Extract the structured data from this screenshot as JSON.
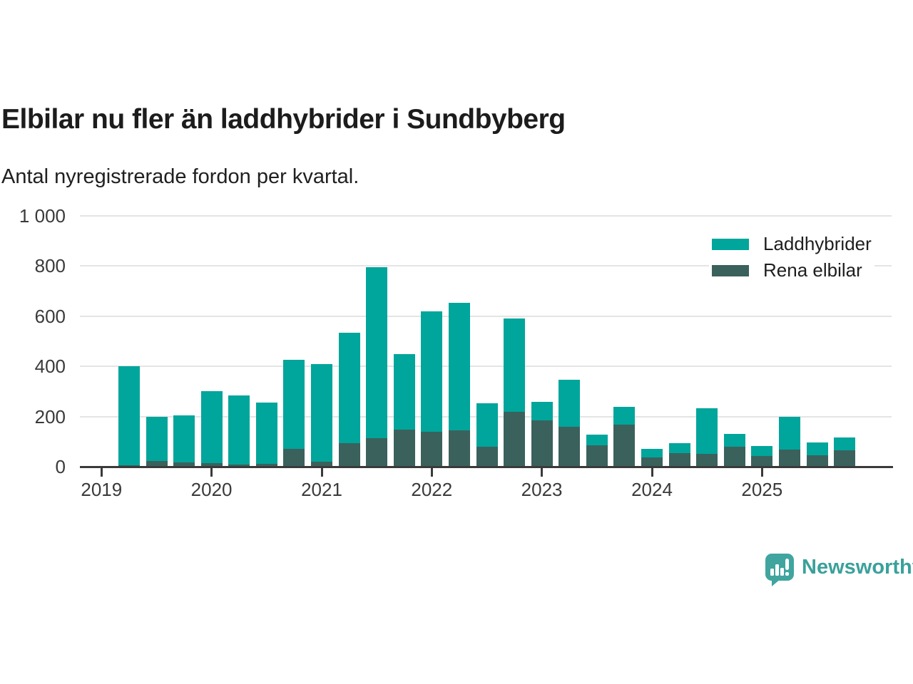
{
  "header": {
    "title": "Elbilar nu fler än laddhybrider i Sundbyberg",
    "subtitle": "Antal nyregistrerade fordon per kvartal."
  },
  "chart_data": {
    "type": "bar",
    "stacked": true,
    "title": "Elbilar nu fler än laddhybrider i Sundbyberg",
    "subtitle": "Antal nyregistrerade fordon per kvartal.",
    "xlabel": "",
    "ylabel": "",
    "ylim": [
      0,
      1000
    ],
    "y_ticks": [
      0,
      200,
      400,
      600,
      800,
      1000
    ],
    "y_tick_labels": [
      "0",
      "200",
      "400",
      "600",
      "800",
      "1 000"
    ],
    "x_year_labels": [
      "2019",
      "2020",
      "2021",
      "2022",
      "2023",
      "2024",
      "2025"
    ],
    "categories": [
      "2019 K2",
      "2019 K3",
      "2019 K4",
      "2020 K1",
      "2020 K2",
      "2020 K3",
      "2020 K4",
      "2021 K1",
      "2021 K2",
      "2021 K3",
      "2021 K4",
      "2022 K1",
      "2022 K2",
      "2022 K3",
      "2022 K4",
      "2023 K1",
      "2023 K2",
      "2023 K3",
      "2023 K4",
      "2024 K1",
      "2024 K2",
      "2024 K3",
      "2024 K4",
      "2025 K1",
      "2025 K2",
      "2025 K3",
      "2025 K4"
    ],
    "series": [
      {
        "name": "Laddhybrider",
        "color": "#00a59b",
        "stack_position": "top",
        "values": [
          395,
          178,
          189,
          285,
          275,
          245,
          355,
          390,
          440,
          680,
          302,
          482,
          510,
          173,
          372,
          73,
          188,
          43,
          71,
          34,
          38,
          180,
          52,
          39,
          132,
          51,
          52
        ]
      },
      {
        "name": "Rena elbilar",
        "color": "#3b615c",
        "stack_position": "bottom",
        "values": [
          5,
          22,
          16,
          15,
          8,
          12,
          70,
          20,
          95,
          115,
          148,
          138,
          145,
          80,
          220,
          185,
          160,
          85,
          168,
          38,
          55,
          52,
          80,
          43,
          68,
          46,
          66
        ]
      }
    ],
    "grid": "horizontal",
    "legend_position": "top-right"
  },
  "legend": {
    "items": [
      {
        "label": "Laddhybrider",
        "color": "#00a59b"
      },
      {
        "label": "Rena elbilar",
        "color": "#3b615c"
      }
    ]
  },
  "footer": {
    "brand": "Newsworthy",
    "brand_color": "#3aa19a",
    "logo_icon": "newsworthy-speech-bubble-chart-icon"
  },
  "colors": {
    "laddhybrider": "#00a59b",
    "rena_elbilar": "#3b615c",
    "gridline": "#e4e4e4",
    "axis": "#3a3a3a",
    "background": "#ffffff"
  }
}
